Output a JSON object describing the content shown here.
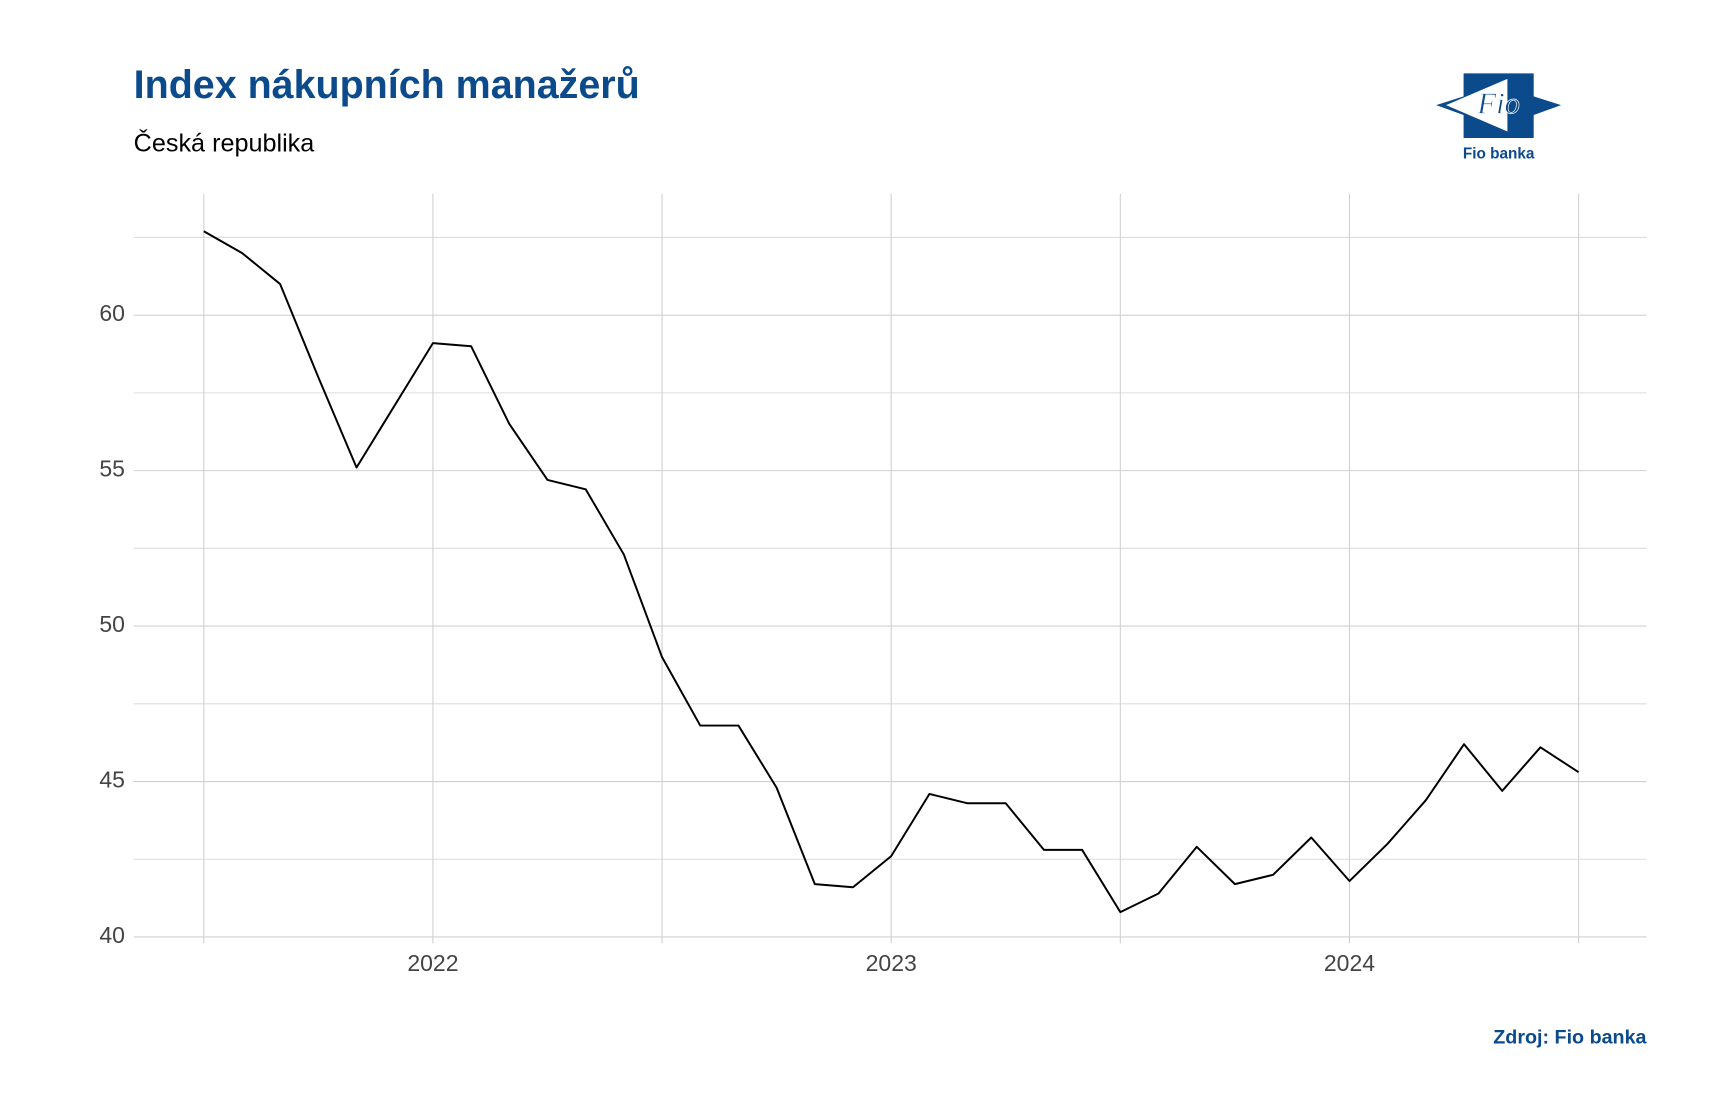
{
  "chart_data": {
    "type": "line",
    "title": "Index nákupních manažerů",
    "subtitle": "Česká republika",
    "categories": [
      null,
      null,
      null,
      null,
      null,
      null,
      "2022",
      null,
      null,
      null,
      null,
      null,
      null,
      null,
      null,
      null,
      null,
      null,
      "2023",
      null,
      null,
      null,
      null,
      null,
      null,
      null,
      null,
      null,
      null,
      null,
      "2024",
      null,
      null,
      null,
      null,
      null,
      null
    ],
    "series": [
      {
        "name": null,
        "color": "#000000",
        "values": [
          62.7,
          62.0,
          61.0,
          58.0,
          55.1,
          57.1,
          59.1,
          59.0,
          56.5,
          54.7,
          54.4,
          52.3,
          49.0,
          46.8,
          46.8,
          44.8,
          41.7,
          41.6,
          42.6,
          44.6,
          44.3,
          44.3,
          42.8,
          42.8,
          40.8,
          41.4,
          42.9,
          41.7,
          42.0,
          43.2,
          41.8,
          43.0,
          44.4,
          46.2,
          44.7,
          46.1,
          45.3
        ]
      }
    ],
    "ylim": [
      39.8,
      63.9
    ],
    "yticks": [
      40,
      45,
      50,
      55,
      60
    ],
    "yminor": [
      42.5,
      47.5,
      52.5,
      57.5,
      62.5
    ],
    "grid": true,
    "source": "Zdroj: Fio banka"
  },
  "logo": {
    "text": "Fio",
    "caption": "Fio banka"
  }
}
